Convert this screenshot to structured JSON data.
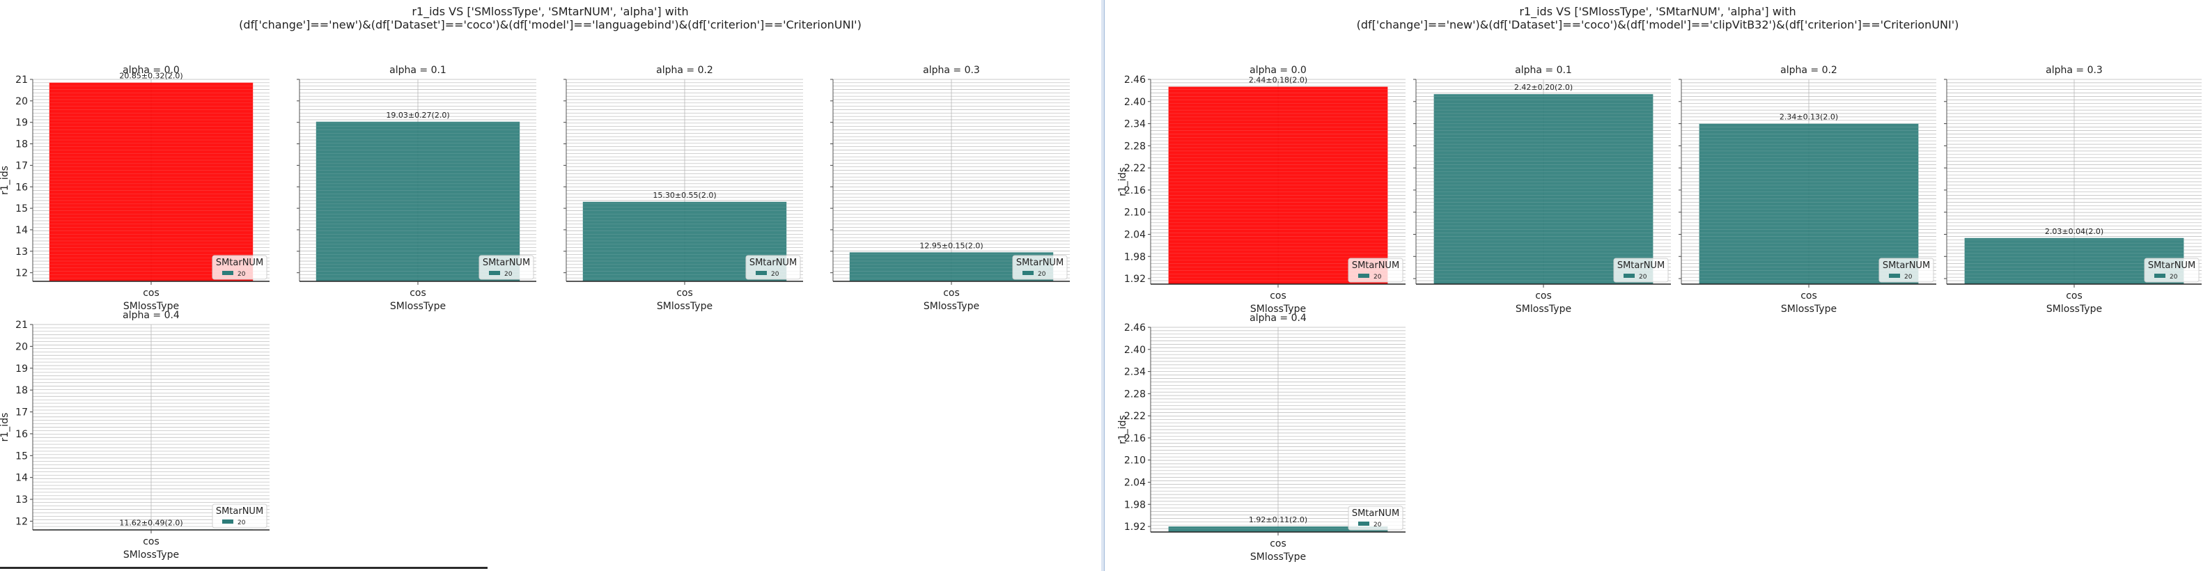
{
  "colors": {
    "highlight_bar": "#ff0000",
    "bar": "#2e7d7a",
    "grid": "#b8b8b8",
    "text": "#222222"
  },
  "chart_data": [
    {
      "type": "bar",
      "title_line1": "r1_ids VS ['SMlossType', 'SMtarNUM', 'alpha'] with",
      "title_line2": "(df['change']=='new')&(df['Dataset']=='coco')&(df['model']=='languagebind')&(df['criterion']=='CriterionUNI')",
      "ylabel": "r1_ids",
      "xlabel": "SMlossType",
      "ylim": [
        11.6,
        21.0
      ],
      "yticks": [
        12,
        13,
        14,
        15,
        16,
        17,
        18,
        19,
        20,
        21
      ],
      "legend_title": "SMtarNUM",
      "legend_entry": "20",
      "panels": [
        {
          "title": "alpha = 0.0",
          "category": "cos",
          "value": 20.85,
          "label": "20.85±0.32(2.0)",
          "highlight": true
        },
        {
          "title": "alpha = 0.1",
          "category": "cos",
          "value": 19.03,
          "label": "19.03±0.27(2.0)",
          "highlight": false
        },
        {
          "title": "alpha = 0.2",
          "category": "cos",
          "value": 15.3,
          "label": "15.30±0.55(2.0)",
          "highlight": false
        },
        {
          "title": "alpha = 0.3",
          "category": "cos",
          "value": 12.95,
          "label": "12.95±0.15(2.0)",
          "highlight": false
        },
        {
          "title": "alpha = 0.4",
          "category": "cos",
          "value": 11.62,
          "label": "11.62±0.49(2.0)",
          "highlight": false
        }
      ]
    },
    {
      "type": "bar",
      "title_line1": "r1_ids VS ['SMlossType', 'SMtarNUM', 'alpha'] with",
      "title_line2": "(df['change']=='new')&(df['Dataset']=='coco')&(df['model']=='clipVitB32')&(df['criterion']=='CriterionUNI')",
      "ylabel": "r1_ids",
      "xlabel": "SMlossType",
      "ylim": [
        1.905,
        2.46
      ],
      "yticks": [
        "1.92",
        "1.98",
        "2.04",
        "2.10",
        "2.16",
        "2.22",
        "2.28",
        "2.34",
        "2.40",
        "2.46"
      ],
      "legend_title": "SMtarNUM",
      "legend_entry": "20",
      "panels": [
        {
          "title": "alpha = 0.0",
          "category": "cos",
          "value": 2.44,
          "label": "2.44±0.18(2.0)",
          "highlight": true
        },
        {
          "title": "alpha = 0.1",
          "category": "cos",
          "value": 2.42,
          "label": "2.42±0.20(2.0)",
          "highlight": false
        },
        {
          "title": "alpha = 0.2",
          "category": "cos",
          "value": 2.34,
          "label": "2.34±0.13(2.0)",
          "highlight": false
        },
        {
          "title": "alpha = 0.3",
          "category": "cos",
          "value": 2.03,
          "label": "2.03±0.04(2.0)",
          "highlight": false
        },
        {
          "title": "alpha = 0.4",
          "category": "cos",
          "value": 1.92,
          "label": "1.92±0.11(2.0)",
          "highlight": false
        }
      ]
    }
  ]
}
